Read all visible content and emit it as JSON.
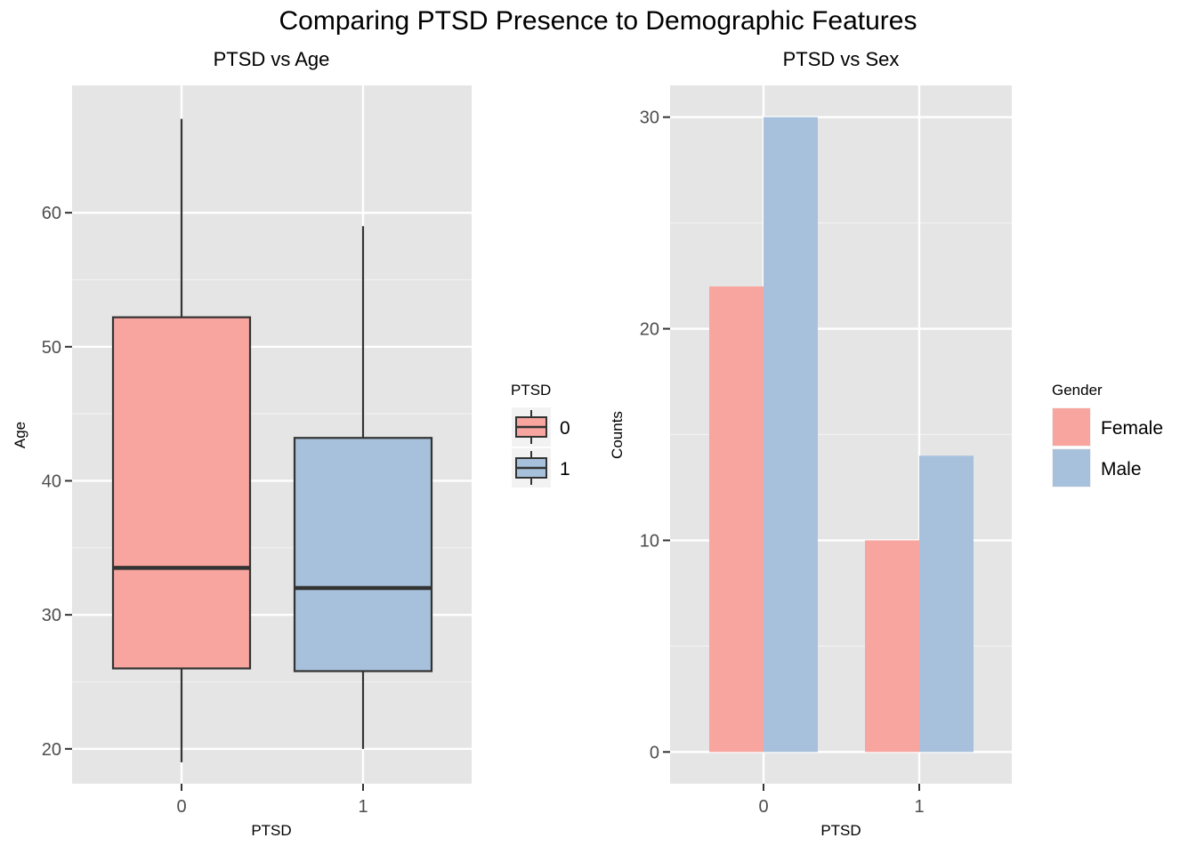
{
  "figure": {
    "title": "Comparing PTSD Presence to Demographic Features"
  },
  "chart_data": [
    {
      "type": "box",
      "title": "PTSD vs Age",
      "xlabel": "PTSD",
      "ylabel": "Age",
      "categories": [
        "0",
        "1"
      ],
      "ylim": [
        17.4,
        69.5
      ],
      "yticks": [
        20,
        30,
        40,
        50,
        60
      ],
      "boxes": [
        {
          "category": "0",
          "min": 19,
          "q1": 26,
          "median": 33.5,
          "q3": 52.2,
          "max": 67,
          "fill": "#f8a5a0"
        },
        {
          "category": "1",
          "min": 20,
          "q1": 25.8,
          "median": 32,
          "q3": 43.2,
          "max": 59,
          "fill": "#a7c1dc"
        }
      ],
      "legend": {
        "title": "PTSD",
        "position": "right",
        "entries": [
          "0",
          "1"
        ]
      },
      "grid": true
    },
    {
      "type": "bar",
      "title": "PTSD vs Sex",
      "xlabel": "PTSD",
      "ylabel": "Counts",
      "categories": [
        "0",
        "1"
      ],
      "ylim": [
        -1.5,
        31.5
      ],
      "yticks": [
        0,
        10,
        20,
        30
      ],
      "series": [
        {
          "name": "Female",
          "values": [
            22,
            10
          ],
          "color": "#f8a5a0"
        },
        {
          "name": "Male",
          "values": [
            30,
            14
          ],
          "color": "#a7c1dc"
        }
      ],
      "legend": {
        "title": "Gender",
        "position": "right",
        "entries": [
          "Female",
          "Male"
        ]
      },
      "grid": true
    }
  ]
}
